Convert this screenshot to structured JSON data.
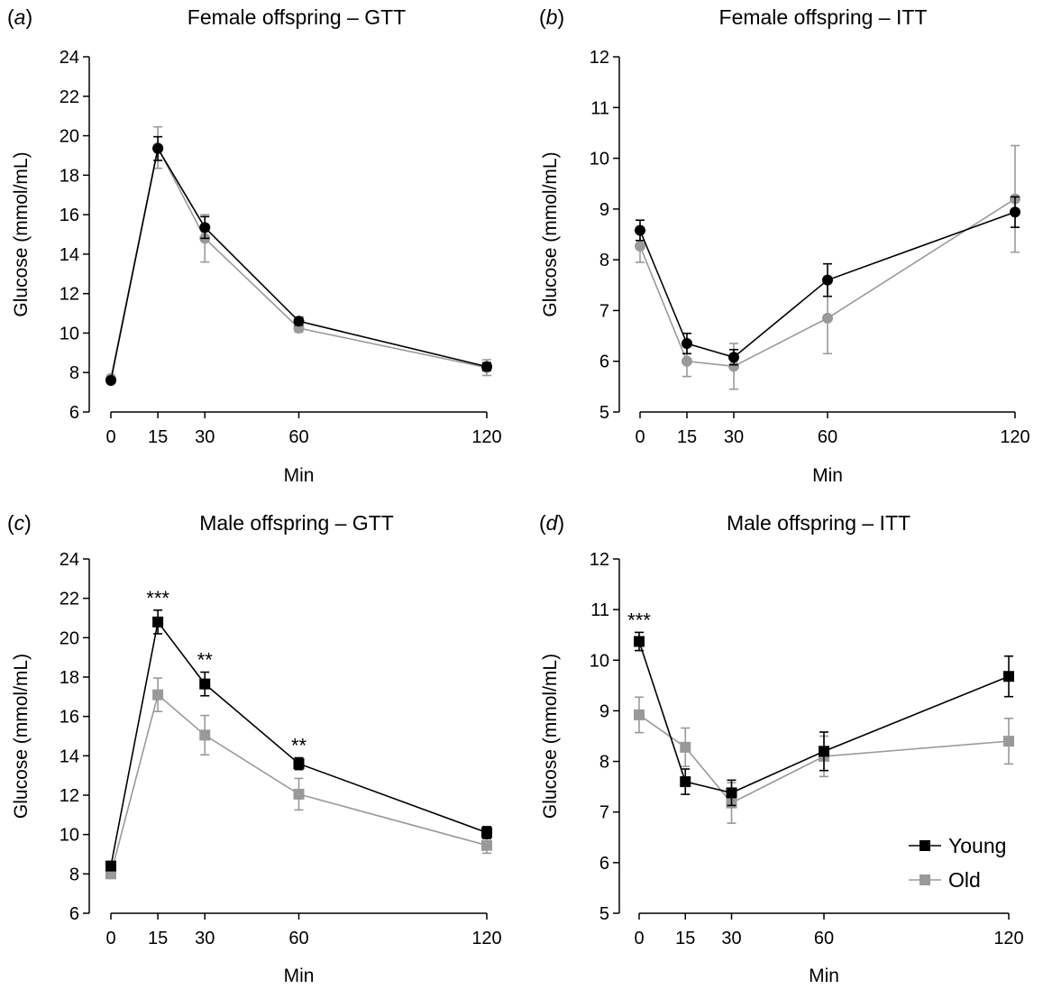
{
  "colors": {
    "young": "#000000",
    "old": "#999999",
    "axis": "#000000"
  },
  "legend": {
    "young_label": "Young",
    "old_label": "Old",
    "placement": "bottom-right of panel d"
  },
  "chart_data": [
    {
      "panel": "a",
      "type": "line",
      "title": "Female offspring – GTT",
      "xlabel": "Min",
      "ylabel": "Glucose (mmol/mL)",
      "x": [
        0,
        15,
        30,
        60,
        120
      ],
      "xticks": [
        "0",
        "15",
        "30",
        "60",
        "120"
      ],
      "ylim": [
        6,
        24
      ],
      "yticks": [
        6,
        8,
        10,
        12,
        14,
        16,
        18,
        20,
        22,
        24
      ],
      "marker": "circle",
      "series": [
        {
          "name": "Old",
          "color": "#999999",
          "values": [
            7.7,
            19.4,
            14.8,
            10.25,
            8.25
          ],
          "errors": [
            0.15,
            1.05,
            1.2,
            0.2,
            0.4
          ]
        },
        {
          "name": "Young",
          "color": "#000000",
          "values": [
            7.6,
            19.35,
            15.35,
            10.6,
            8.3
          ],
          "errors": [
            0.1,
            0.6,
            0.55,
            0.2,
            0.2
          ]
        }
      ],
      "annotations": []
    },
    {
      "panel": "b",
      "type": "line",
      "title": "Female offspring – ITT",
      "xlabel": "Min",
      "ylabel": "Glucose (mmol/mL)",
      "x": [
        0,
        15,
        30,
        60,
        120
      ],
      "xticks": [
        "0",
        "15",
        "30",
        "60",
        "120"
      ],
      "ylim": [
        5,
        12
      ],
      "yticks": [
        5,
        6,
        7,
        8,
        9,
        10,
        11,
        12
      ],
      "marker": "circle",
      "series": [
        {
          "name": "Old",
          "color": "#999999",
          "values": [
            8.27,
            6.0,
            5.9,
            6.85,
            9.2
          ],
          "errors": [
            0.32,
            0.3,
            0.45,
            0.7,
            1.05
          ]
        },
        {
          "name": "Young",
          "color": "#000000",
          "values": [
            8.58,
            6.35,
            6.08,
            7.6,
            8.94
          ],
          "errors": [
            0.2,
            0.2,
            0.15,
            0.32,
            0.3
          ]
        }
      ],
      "annotations": []
    },
    {
      "panel": "c",
      "type": "line",
      "title": "Male offspring – GTT",
      "xlabel": "Min",
      "ylabel": "Glucose (mmol/mL)",
      "x": [
        0,
        15,
        30,
        60,
        120
      ],
      "xticks": [
        "0",
        "15",
        "30",
        "60",
        "120"
      ],
      "ylim": [
        6,
        24
      ],
      "yticks": [
        6,
        8,
        10,
        12,
        14,
        16,
        18,
        20,
        22,
        24
      ],
      "marker": "square",
      "series": [
        {
          "name": "Old",
          "color": "#999999",
          "values": [
            8.0,
            17.1,
            15.05,
            12.05,
            9.45
          ],
          "errors": [
            0.15,
            0.85,
            1.0,
            0.8,
            0.4
          ]
        },
        {
          "name": "Young",
          "color": "#000000",
          "values": [
            8.4,
            20.8,
            17.65,
            13.6,
            10.1
          ],
          "errors": [
            0.15,
            0.6,
            0.6,
            0.3,
            0.3
          ]
        }
      ],
      "annotations": [
        {
          "x": 15,
          "y": 21.4,
          "text": "***"
        },
        {
          "x": 30,
          "y": 18.25,
          "text": "**"
        },
        {
          "x": 60,
          "y": 13.9,
          "text": "**"
        }
      ]
    },
    {
      "panel": "d",
      "type": "line",
      "title": "Male offspring – ITT",
      "xlabel": "Min",
      "ylabel": "Glucose (mmol/mL)",
      "x": [
        0,
        15,
        30,
        60,
        120
      ],
      "xticks": [
        "0",
        "15",
        "30",
        "60",
        "120"
      ],
      "ylim": [
        5,
        12
      ],
      "yticks": [
        5,
        6,
        7,
        8,
        9,
        10,
        11,
        12
      ],
      "marker": "square",
      "series": [
        {
          "name": "Old",
          "color": "#999999",
          "values": [
            8.92,
            8.28,
            7.18,
            8.1,
            8.4
          ],
          "errors": [
            0.35,
            0.38,
            0.4,
            0.4,
            0.45
          ]
        },
        {
          "name": "Young",
          "color": "#000000",
          "values": [
            10.37,
            7.6,
            7.38,
            8.2,
            9.68
          ],
          "errors": [
            0.18,
            0.25,
            0.25,
            0.38,
            0.4
          ]
        }
      ],
      "annotations": [
        {
          "x": 0,
          "y": 10.55,
          "text": "***"
        }
      ]
    }
  ]
}
